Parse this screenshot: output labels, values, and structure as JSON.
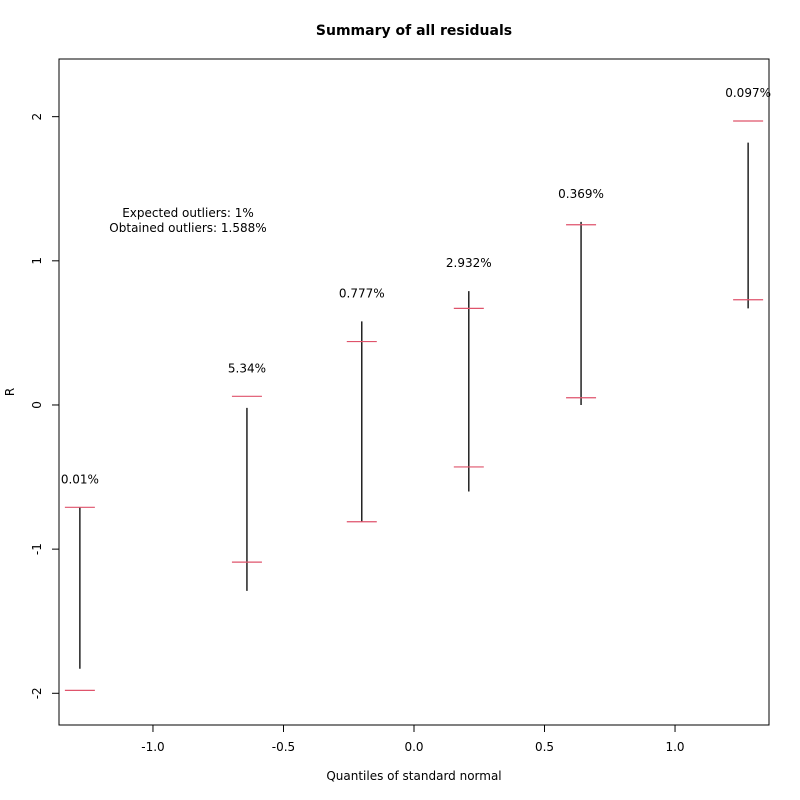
{
  "chart_data": {
    "type": "residual-summary",
    "title": "Summary of all residuals",
    "xlabel": "Quantiles of standard normal",
    "ylabel": "R",
    "xlim": [
      -1.36,
      1.36
    ],
    "ylim": [
      -2.22,
      2.4
    ],
    "xticks": [
      -1.0,
      -0.5,
      0.0,
      0.5,
      1.0
    ],
    "xtick_labels": [
      "-1.0",
      "-0.5",
      "0.0",
      "0.5",
      "1.0"
    ],
    "yticks": [
      -2,
      -1,
      0,
      1,
      2
    ],
    "ytick_labels": [
      "-2",
      "-1",
      "0",
      "1",
      "2"
    ],
    "annotation": [
      "Expected outliers: 1%",
      "Obtained outliers: 1.588%"
    ],
    "groups": [
      {
        "x": -1.28,
        "lower": -1.98,
        "upper": -0.71,
        "seg_low": -1.83,
        "seg_high": -0.71,
        "outlier_pct": "0.01%"
      },
      {
        "x": -0.64,
        "lower": -1.09,
        "upper": 0.06,
        "seg_low": -1.29,
        "seg_high": -0.02,
        "outlier_pct": "5.34%"
      },
      {
        "x": -0.2,
        "lower": -0.81,
        "upper": 0.44,
        "seg_low": -0.81,
        "seg_high": 0.58,
        "outlier_pct": "0.777%"
      },
      {
        "x": 0.21,
        "lower": -0.43,
        "upper": 0.67,
        "seg_low": -0.6,
        "seg_high": 0.79,
        "outlier_pct": "2.932%"
      },
      {
        "x": 0.64,
        "lower": 0.05,
        "upper": 1.25,
        "seg_low": 0.0,
        "seg_high": 1.27,
        "outlier_pct": "0.369%"
      },
      {
        "x": 1.28,
        "lower": 0.73,
        "upper": 1.97,
        "seg_low": 0.67,
        "seg_high": 1.82,
        "outlier_pct": "0.097%"
      }
    ],
    "colors": {
      "bound_line": "#DF536B",
      "segment": "#000000",
      "frame": "#000000"
    }
  }
}
